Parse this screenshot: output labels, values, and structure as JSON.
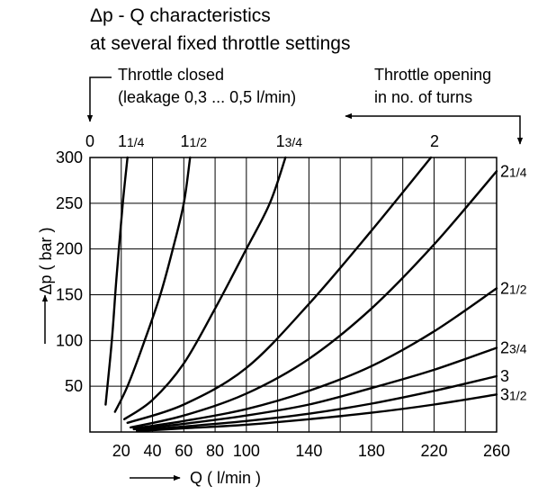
{
  "chart_data": {
    "type": "line",
    "title": "Δp - Q characteristics",
    "subtitle": "at several fixed throttle settings",
    "xlabel": "Q ( l/min )",
    "ylabel": "Δp ( bar )",
    "xlim": [
      0,
      260
    ],
    "ylim": [
      0,
      300
    ],
    "grid": true,
    "x_ticks": [
      "20",
      "40",
      "60",
      "80",
      "100",
      "140",
      "180",
      "220",
      "260"
    ],
    "y_ticks": [
      "50",
      "100",
      "150",
      "200",
      "250",
      "300"
    ],
    "annotations": {
      "closed_line1": "Throttle closed",
      "closed_line2": "(leakage 0,3 ... 0,5 l/min)",
      "opening_line1": "Throttle opening",
      "opening_line2": "in no. of turns"
    },
    "series": [
      {
        "name": "0",
        "label_main": "0",
        "label_frac": "",
        "label_pos": "top",
        "points": [
          [
            5,
            0
          ],
          [
            5,
            300
          ]
        ]
      },
      {
        "name": "1 1/4",
        "label_main": "1",
        "label_frac": "1/4",
        "label_pos": "top",
        "points": [
          [
            10,
            30
          ],
          [
            14,
            100
          ],
          [
            17,
            170
          ],
          [
            21,
            250
          ],
          [
            24,
            300
          ]
        ]
      },
      {
        "name": "1 1/2",
        "label_main": "1",
        "label_frac": "1/2",
        "label_pos": "top",
        "points": [
          [
            16,
            22
          ],
          [
            24,
            50
          ],
          [
            35,
            100
          ],
          [
            45,
            150
          ],
          [
            53,
            200
          ],
          [
            60,
            250
          ],
          [
            64,
            300
          ]
        ]
      },
      {
        "name": "1 3/4",
        "label_main": "1",
        "label_frac": "3/4",
        "label_pos": "top",
        "points": [
          [
            22,
            14
          ],
          [
            40,
            35
          ],
          [
            60,
            75
          ],
          [
            80,
            135
          ],
          [
            100,
            200
          ],
          [
            115,
            250
          ],
          [
            125,
            300
          ]
        ]
      },
      {
        "name": "2",
        "label_main": "2",
        "label_frac": "",
        "label_pos": "top",
        "points": [
          [
            24,
            10
          ],
          [
            60,
            30
          ],
          [
            100,
            70
          ],
          [
            140,
            140
          ],
          [
            180,
            220
          ],
          [
            218,
            300
          ]
        ]
      },
      {
        "name": "2 1/4",
        "label_main": "2",
        "label_frac": "1/4",
        "label_pos": "right",
        "points": [
          [
            26,
            5
          ],
          [
            60,
            18
          ],
          [
            100,
            42
          ],
          [
            140,
            80
          ],
          [
            180,
            135
          ],
          [
            220,
            205
          ],
          [
            260,
            285
          ]
        ]
      },
      {
        "name": "2 1/2",
        "label_main": "2",
        "label_frac": "1/2",
        "label_pos": "right",
        "points": [
          [
            28,
            4
          ],
          [
            60,
            12
          ],
          [
            100,
            25
          ],
          [
            140,
            45
          ],
          [
            180,
            72
          ],
          [
            220,
            110
          ],
          [
            260,
            157
          ]
        ]
      },
      {
        "name": "2 3/4",
        "label_main": "2",
        "label_frac": "3/4",
        "label_pos": "right",
        "points": [
          [
            28,
            3
          ],
          [
            60,
            9
          ],
          [
            100,
            18
          ],
          [
            140,
            30
          ],
          [
            180,
            48
          ],
          [
            220,
            68
          ],
          [
            260,
            92
          ]
        ]
      },
      {
        "name": "3",
        "label_main": "3",
        "label_frac": "",
        "label_pos": "right",
        "points": [
          [
            30,
            2
          ],
          [
            60,
            6
          ],
          [
            100,
            12
          ],
          [
            140,
            20
          ],
          [
            180,
            31
          ],
          [
            220,
            45
          ],
          [
            260,
            61
          ]
        ]
      },
      {
        "name": "3 1/2",
        "label_main": "3",
        "label_frac": "1/2",
        "label_pos": "right",
        "points": [
          [
            30,
            1
          ],
          [
            60,
            4
          ],
          [
            100,
            8
          ],
          [
            140,
            14
          ],
          [
            180,
            21
          ],
          [
            220,
            30
          ],
          [
            260,
            41
          ]
        ]
      }
    ]
  }
}
